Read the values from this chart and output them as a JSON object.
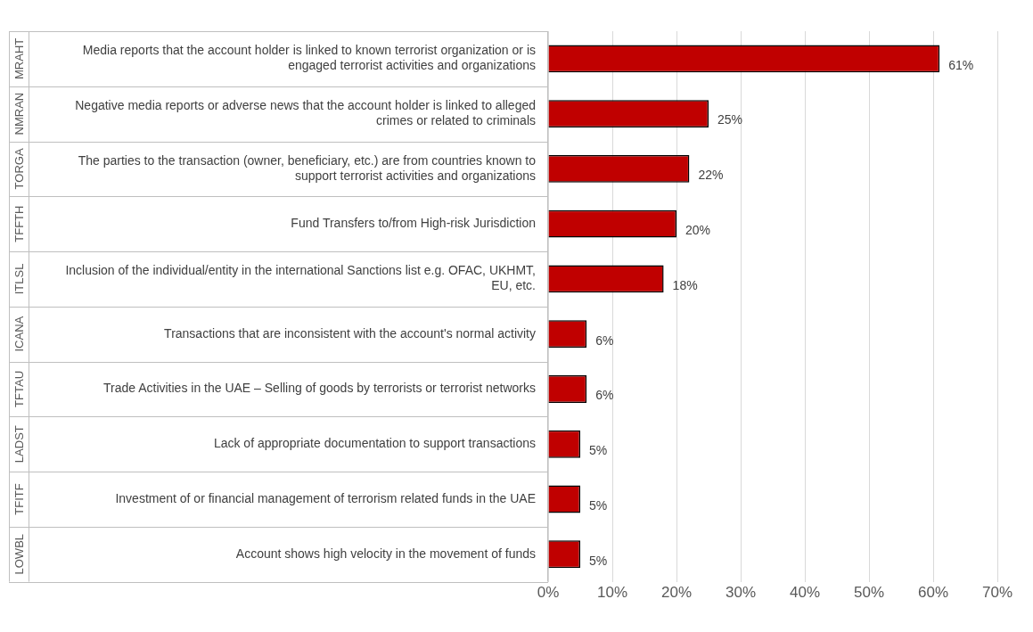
{
  "chart_data": {
    "type": "bar",
    "orientation": "horizontal",
    "categories": [
      "Media reports that the account holder is linked to known terrorist organization or is engaged terrorist activities and organizations",
      "Negative media reports or adverse news that the account holder is linked to alleged crimes or related to criminals",
      "The parties to the transaction (owner, beneficiary, etc.) are from countries known to support terrorist activities and organizations",
      "Fund Transfers to/from High-risk Jurisdiction",
      "Inclusion of the individual/entity in the international Sanctions list e.g. OFAC, UKHMT, EU, etc.",
      "Transactions that are inconsistent with the account's normal activity",
      "Trade Activities in the UAE – Selling of goods by terrorists or terrorist networks",
      "Lack of appropriate documentation to support transactions",
      "Investment of or financial management of terrorism related funds in the UAE",
      "Account shows high velocity in the movement of funds"
    ],
    "values": [
      61,
      25,
      22,
      20,
      18,
      6,
      6,
      5,
      5,
      5
    ],
    "value_labels": [
      "61%",
      "25%",
      "22%",
      "20%",
      "18%",
      "6%",
      "6%",
      "5%",
      "5%",
      "5%"
    ],
    "color": "#c00000",
    "xlim": [
      0,
      70
    ],
    "xticks": [
      {
        "value": 0,
        "label": "0%"
      },
      {
        "value": 10,
        "label": "10%"
      },
      {
        "value": 20,
        "label": "20%"
      },
      {
        "value": 30,
        "label": "30%"
      },
      {
        "value": 40,
        "label": "40%"
      },
      {
        "value": 50,
        "label": "50%"
      },
      {
        "value": 60,
        "label": "60%"
      },
      {
        "value": 70,
        "label": "70%"
      }
    ],
    "grid": "x",
    "legend": false,
    "annotations": [
      "MRAHT",
      "NMRAN",
      "TORGA",
      "TFFTH",
      "ITLSL",
      "ICANA",
      "TFTAU",
      "LADST",
      "TFITF",
      "LOWBL"
    ]
  }
}
